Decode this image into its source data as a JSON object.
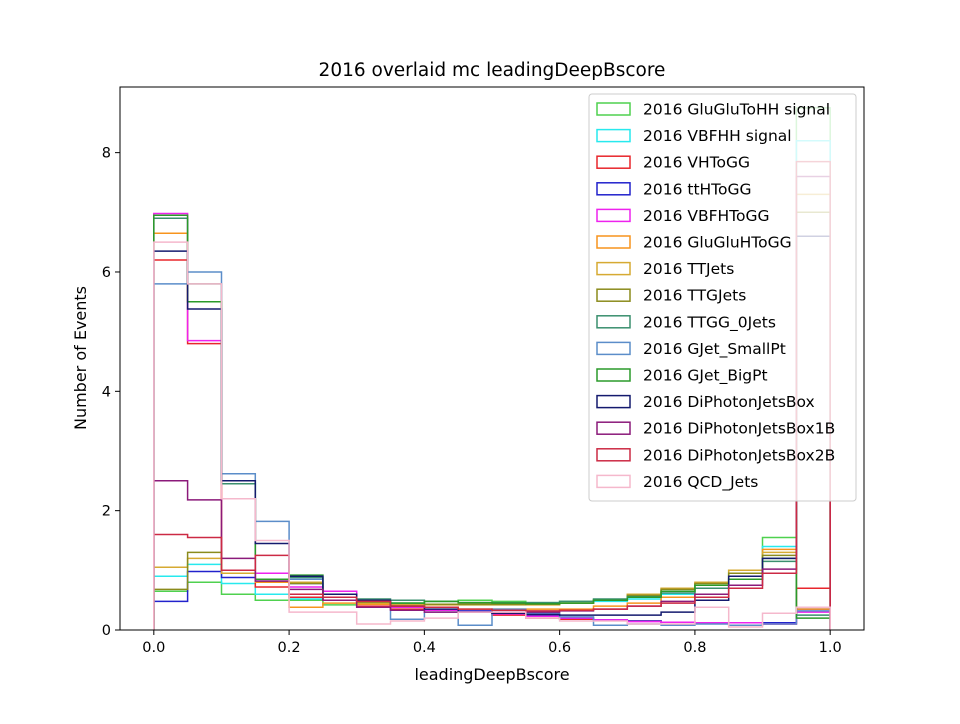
{
  "chart_data": {
    "type": "histogram",
    "title": "2016 overlaid mc leadingDeepBscore",
    "xlabel": "leadingDeepBscore",
    "ylabel": "Number of Events",
    "xlim": [
      -0.05,
      1.05
    ],
    "ylim": [
      0,
      9.1
    ],
    "xticks": [
      0.0,
      0.2,
      0.4,
      0.6,
      0.8,
      1.0
    ],
    "xtick_labels": [
      "0.0",
      "0.2",
      "0.4",
      "0.6",
      "0.8",
      "1.0"
    ],
    "yticks": [
      0,
      2,
      4,
      6,
      8
    ],
    "ytick_labels": [
      "0",
      "2",
      "4",
      "6",
      "8"
    ],
    "histtype": "step",
    "grid": false,
    "legend_position": "upper right",
    "bin_edges": [
      0.0,
      0.05,
      0.1,
      0.15,
      0.2,
      0.25,
      0.3,
      0.35,
      0.4,
      0.45,
      0.5,
      0.55,
      0.6,
      0.65,
      0.7,
      0.75,
      0.8,
      0.85,
      0.9,
      0.95,
      1.0
    ],
    "series": [
      {
        "name": "2016 GluGluToHH signal",
        "color": "#4fd14f",
        "values": [
          0.65,
          0.8,
          0.6,
          0.5,
          0.5,
          0.42,
          0.45,
          0.45,
          0.48,
          0.5,
          0.48,
          0.46,
          0.48,
          0.5,
          0.55,
          0.65,
          0.75,
          1.0,
          1.55,
          8.75
        ]
      },
      {
        "name": "2016 VBFHH signal",
        "color": "#27e9ee",
        "values": [
          0.9,
          1.1,
          0.78,
          0.6,
          0.52,
          0.5,
          0.48,
          0.45,
          0.43,
          0.42,
          0.42,
          0.43,
          0.45,
          0.48,
          0.52,
          0.6,
          0.75,
          0.95,
          1.4,
          8.2
        ]
      },
      {
        "name": "2016 VHToGG",
        "color": "#e8262c",
        "values": [
          6.2,
          4.8,
          0.95,
          0.72,
          0.55,
          0.5,
          0.4,
          0.35,
          0.33,
          0.3,
          0.25,
          0.2,
          0.18,
          0.16,
          0.15,
          0.13,
          0.12,
          0.12,
          0.1,
          0.7
        ]
      },
      {
        "name": "2016 ttHToGG",
        "color": "#2222cc",
        "values": [
          0.48,
          0.98,
          0.88,
          0.82,
          0.78,
          0.6,
          0.5,
          0.42,
          0.38,
          0.32,
          0.28,
          0.24,
          0.2,
          0.17,
          0.15,
          0.13,
          0.12,
          0.12,
          0.12,
          0.35
        ]
      },
      {
        "name": "2016 VBFHToGG",
        "color": "#ee22ee",
        "values": [
          6.98,
          4.85,
          2.2,
          0.95,
          0.72,
          0.65,
          0.45,
          0.38,
          0.33,
          0.3,
          0.27,
          0.23,
          0.2,
          0.17,
          0.14,
          0.13,
          0.12,
          0.12,
          0.1,
          0.3
        ]
      },
      {
        "name": "2016 GluGluHToGG",
        "color": "#f7941d",
        "values": [
          6.65,
          5.5,
          2.2,
          0.8,
          0.38,
          0.45,
          0.43,
          0.42,
          0.38,
          0.35,
          0.35,
          0.35,
          0.35,
          0.4,
          0.45,
          0.55,
          0.7,
          0.85,
          1.35,
          0.35
        ]
      },
      {
        "name": "2016 TTJets",
        "color": "#d6aa32",
        "values": [
          1.05,
          1.2,
          0.95,
          0.85,
          0.8,
          0.55,
          0.45,
          0.42,
          0.42,
          0.42,
          0.42,
          0.42,
          0.45,
          0.5,
          0.6,
          0.7,
          0.8,
          1.0,
          1.3,
          7.3
        ]
      },
      {
        "name": "2016 TTGJets",
        "color": "#8b8b1c",
        "values": [
          0.68,
          1.3,
          1.0,
          0.85,
          0.78,
          0.55,
          0.47,
          0.45,
          0.43,
          0.43,
          0.43,
          0.43,
          0.45,
          0.5,
          0.58,
          0.68,
          0.78,
          0.95,
          1.25,
          7.0
        ]
      },
      {
        "name": "2016 TTGG_0Jets",
        "color": "#3a8f6e",
        "values": [
          6.9,
          5.8,
          2.45,
          0.85,
          0.88,
          0.5,
          0.52,
          0.5,
          0.48,
          0.46,
          0.46,
          0.46,
          0.48,
          0.52,
          0.56,
          0.62,
          0.7,
          0.85,
          1.15,
          0.25
        ]
      },
      {
        "name": "2016 GJet_SmallPt",
        "color": "#5b8dc9",
        "values": [
          5.8,
          6.0,
          2.62,
          1.82,
          0.85,
          0.6,
          0.5,
          0.18,
          0.3,
          0.08,
          0.35,
          0.28,
          0.22,
          0.08,
          0.1,
          0.08,
          0.1,
          0.08,
          0.1,
          0.32
        ]
      },
      {
        "name": "2016 GJet_BigPt",
        "color": "#2a9a2a",
        "values": [
          6.95,
          5.5,
          2.5,
          0.85,
          0.92,
          0.5,
          0.48,
          0.45,
          0.48,
          0.46,
          0.45,
          0.44,
          0.45,
          0.5,
          0.55,
          0.65,
          0.75,
          0.85,
          1.2,
          0.2
        ]
      },
      {
        "name": "2016 DiPhotonJetsBox",
        "color": "#141a6e",
        "values": [
          6.35,
          5.38,
          2.5,
          1.45,
          0.9,
          0.6,
          0.5,
          0.4,
          0.35,
          0.3,
          0.28,
          0.26,
          0.25,
          0.25,
          0.25,
          0.3,
          0.5,
          0.9,
          1.2,
          6.6
        ]
      },
      {
        "name": "2016 DiPhotonJetsBox1B",
        "color": "#8b1a7a",
        "values": [
          2.5,
          2.18,
          1.2,
          0.82,
          0.68,
          0.5,
          0.38,
          0.33,
          0.3,
          0.3,
          0.3,
          0.3,
          0.32,
          0.35,
          0.4,
          0.48,
          0.6,
          0.75,
          1.02,
          7.6
        ]
      },
      {
        "name": "2016 DiPhotonJetsBox2B",
        "color": "#cc2a44",
        "values": [
          1.6,
          1.55,
          1.0,
          1.25,
          0.6,
          0.55,
          0.48,
          0.4,
          0.38,
          0.35,
          0.33,
          0.32,
          0.33,
          0.35,
          0.4,
          0.45,
          0.55,
          0.7,
          0.95,
          7.85
        ]
      },
      {
        "name": "2016 QCD_Jets",
        "color": "#f5b8cc",
        "values": [
          6.5,
          5.8,
          2.2,
          1.5,
          0.3,
          0.3,
          0.1,
          0.15,
          0.2,
          0.3,
          0.3,
          0.2,
          0.15,
          0.15,
          0.1,
          0.1,
          0.38,
          0.05,
          0.28,
          0.38
        ]
      }
    ]
  }
}
